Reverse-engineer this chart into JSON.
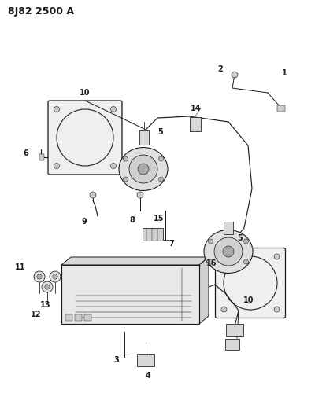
{
  "title": "8J82 2500 A",
  "bg_color": "#ffffff",
  "line_color": "#1a1a1a",
  "title_fontsize": 9,
  "label_fontsize": 7,
  "fig_w": 4.0,
  "fig_h": 5.33,
  "dpi": 100
}
